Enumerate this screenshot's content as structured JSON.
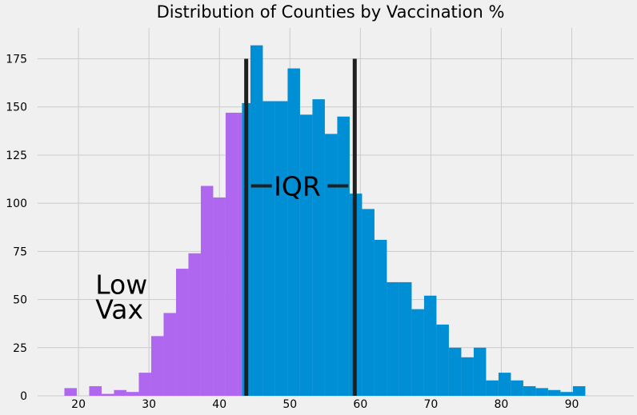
{
  "chart_data": {
    "type": "bar",
    "title": "Distribution of Counties by Vaccination %",
    "xlabel": "",
    "ylabel": "",
    "xlim": [
      14.2,
      98.8
    ],
    "ylim": [
      0,
      191
    ],
    "grid": true,
    "bin_width": 1.76,
    "bins": [
      {
        "x0": 18.0,
        "x1": 19.76,
        "count": 4,
        "group": "low"
      },
      {
        "x0": 19.76,
        "x1": 21.52,
        "count": 0,
        "group": "low"
      },
      {
        "x0": 21.52,
        "x1": 23.28,
        "count": 5,
        "group": "low"
      },
      {
        "x0": 23.28,
        "x1": 25.04,
        "count": 1,
        "group": "low"
      },
      {
        "x0": 25.04,
        "x1": 26.8,
        "count": 3,
        "group": "low"
      },
      {
        "x0": 26.8,
        "x1": 28.56,
        "count": 2,
        "group": "low"
      },
      {
        "x0": 28.56,
        "x1": 30.32,
        "count": 12,
        "group": "low"
      },
      {
        "x0": 30.32,
        "x1": 32.08,
        "count": 31,
        "group": "low"
      },
      {
        "x0": 32.08,
        "x1": 33.84,
        "count": 43,
        "group": "low"
      },
      {
        "x0": 33.84,
        "x1": 35.6,
        "count": 66,
        "group": "low"
      },
      {
        "x0": 35.6,
        "x1": 37.36,
        "count": 74,
        "group": "low"
      },
      {
        "x0": 37.36,
        "x1": 39.12,
        "count": 109,
        "group": "low"
      },
      {
        "x0": 39.12,
        "x1": 40.88,
        "count": 103,
        "group": "low"
      },
      {
        "x0": 40.88,
        "x1": 42.64,
        "count": 147,
        "group": "low"
      },
      {
        "x0": 42.64,
        "x1": 43.2,
        "count": 147,
        "group": "low"
      },
      {
        "x0": 43.2,
        "x1": 44.4,
        "count": 152,
        "group": "rest"
      },
      {
        "x0": 44.4,
        "x1": 46.16,
        "count": 182,
        "group": "rest"
      },
      {
        "x0": 46.16,
        "x1": 47.92,
        "count": 153,
        "group": "rest"
      },
      {
        "x0": 47.92,
        "x1": 49.68,
        "count": 153,
        "group": "rest"
      },
      {
        "x0": 49.68,
        "x1": 51.44,
        "count": 170,
        "group": "rest"
      },
      {
        "x0": 51.44,
        "x1": 53.2,
        "count": 146,
        "group": "rest"
      },
      {
        "x0": 53.2,
        "x1": 54.96,
        "count": 154,
        "group": "rest"
      },
      {
        "x0": 54.96,
        "x1": 56.72,
        "count": 136,
        "group": "rest"
      },
      {
        "x0": 56.72,
        "x1": 58.48,
        "count": 145,
        "group": "rest"
      },
      {
        "x0": 58.48,
        "x1": 60.24,
        "count": 105,
        "group": "rest"
      },
      {
        "x0": 60.24,
        "x1": 62.0,
        "count": 97,
        "group": "rest"
      },
      {
        "x0": 62.0,
        "x1": 63.76,
        "count": 81,
        "group": "rest"
      },
      {
        "x0": 63.76,
        "x1": 65.52,
        "count": 59,
        "group": "rest"
      },
      {
        "x0": 65.52,
        "x1": 67.28,
        "count": 59,
        "group": "rest"
      },
      {
        "x0": 67.28,
        "x1": 69.04,
        "count": 45,
        "group": "rest"
      },
      {
        "x0": 69.04,
        "x1": 70.8,
        "count": 52,
        "group": "rest"
      },
      {
        "x0": 70.8,
        "x1": 72.56,
        "count": 37,
        "group": "rest"
      },
      {
        "x0": 72.56,
        "x1": 74.32,
        "count": 25,
        "group": "rest"
      },
      {
        "x0": 74.32,
        "x1": 76.08,
        "count": 20,
        "group": "rest"
      },
      {
        "x0": 76.08,
        "x1": 77.84,
        "count": 25,
        "group": "rest"
      },
      {
        "x0": 77.84,
        "x1": 79.6,
        "count": 8,
        "group": "rest"
      },
      {
        "x0": 79.6,
        "x1": 81.36,
        "count": 12,
        "group": "rest"
      },
      {
        "x0": 81.36,
        "x1": 83.12,
        "count": 8,
        "group": "rest"
      },
      {
        "x0": 83.12,
        "x1": 84.88,
        "count": 5,
        "group": "rest"
      },
      {
        "x0": 84.88,
        "x1": 86.64,
        "count": 4,
        "group": "rest"
      },
      {
        "x0": 86.64,
        "x1": 88.4,
        "count": 3,
        "group": "rest"
      },
      {
        "x0": 88.4,
        "x1": 90.16,
        "count": 2,
        "group": "rest"
      },
      {
        "x0": 90.16,
        "x1": 91.92,
        "count": 5,
        "group": "rest"
      }
    ],
    "x_ticks": [
      20,
      30,
      40,
      50,
      60,
      70,
      80,
      90
    ],
    "y_ticks": [
      0,
      25,
      50,
      75,
      100,
      125,
      150,
      175
    ],
    "vlines": [
      {
        "x": 43.8,
        "y0": 0,
        "y1": 175,
        "label": "Q1"
      },
      {
        "x": 59.2,
        "y0": 0,
        "y1": 175,
        "label": "Q3"
      }
    ],
    "annotations": {
      "iqr": "IQR",
      "low_vax_line1": "Low",
      "low_vax_line2": "Vax"
    },
    "colors": {
      "low": "#af67f0",
      "rest": "#008fd5",
      "vline": "#1f1f1f",
      "grid": "#cbcbcb",
      "background": "#f0f0f0"
    }
  }
}
